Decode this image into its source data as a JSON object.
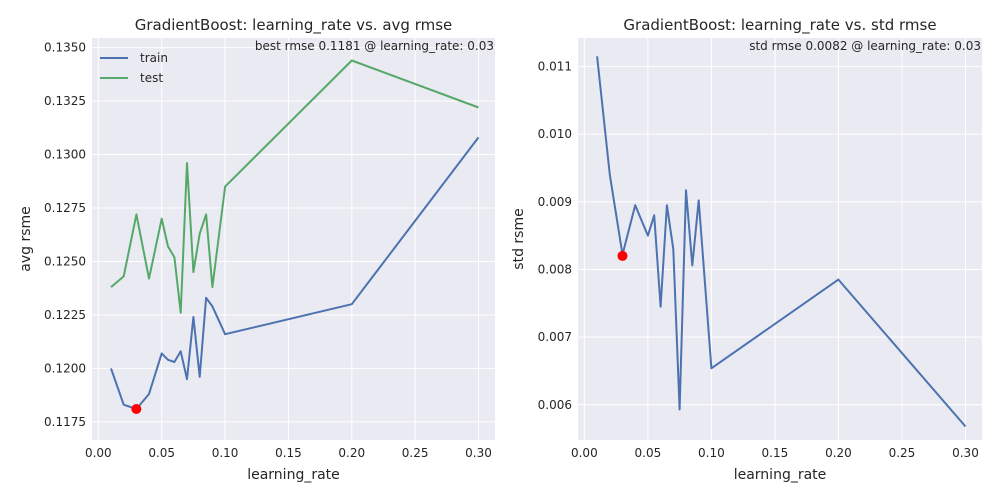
{
  "chart_data": [
    {
      "type": "line",
      "title": "GradientBoost: learning_rate vs. avg rmse",
      "xlabel": "learning_rate",
      "ylabel": "avg rsme",
      "annotation": "best rmse 0.1181 @ learning_rate: 0.03",
      "xlim": [
        -0.005,
        0.313
      ],
      "ylim": [
        0.11665,
        0.13545
      ],
      "xticks": [
        0.0,
        0.05,
        0.1,
        0.15,
        0.2,
        0.25,
        0.3
      ],
      "xtick_labels": [
        "0.00",
        "0.05",
        "0.10",
        "0.15",
        "0.20",
        "0.25",
        "0.30"
      ],
      "yticks": [
        0.1175,
        0.12,
        0.1225,
        0.125,
        0.1275,
        0.13,
        0.1325,
        0.135
      ],
      "ytick_labels": [
        "0.1175",
        "0.1200",
        "0.1225",
        "0.1250",
        "0.1275",
        "0.1300",
        "0.1325",
        "0.1350"
      ],
      "grid": true,
      "legend_position": "top-left",
      "x": [
        0.01,
        0.02,
        0.03,
        0.04,
        0.05,
        0.055,
        0.06,
        0.065,
        0.07,
        0.075,
        0.08,
        0.085,
        0.09,
        0.1,
        0.2,
        0.3
      ],
      "series": [
        {
          "name": "train",
          "color": "#4c72b0",
          "values": [
            0.12,
            0.1183,
            0.1181,
            0.1188,
            0.1207,
            0.1204,
            0.1203,
            0.1208,
            0.1195,
            0.1224,
            0.1196,
            0.1233,
            0.1229,
            0.1216,
            0.123,
            0.1308
          ]
        },
        {
          "name": "test",
          "color": "#55a868",
          "values": [
            0.1238,
            0.1243,
            0.1272,
            0.1242,
            0.127,
            0.1257,
            0.1252,
            0.1226,
            0.1296,
            0.1245,
            0.1263,
            0.1272,
            0.1238,
            0.1285,
            0.1344,
            0.1322
          ]
        }
      ],
      "marker": {
        "x": 0.03,
        "y": 0.1181,
        "color": "#ff0000"
      }
    },
    {
      "type": "line",
      "title": "GradientBoost: learning_rate vs. std rmse",
      "xlabel": "learning_rate",
      "ylabel": "std rsme",
      "annotation": "std rmse 0.0082 @ learning_rate: 0.03",
      "xlim": [
        -0.005,
        0.313
      ],
      "ylim": [
        0.00548,
        0.01142
      ],
      "xticks": [
        0.0,
        0.05,
        0.1,
        0.15,
        0.2,
        0.25,
        0.3
      ],
      "xtick_labels": [
        "0.00",
        "0.05",
        "0.10",
        "0.15",
        "0.20",
        "0.25",
        "0.30"
      ],
      "yticks": [
        0.006,
        0.007,
        0.008,
        0.009,
        0.01,
        0.011
      ],
      "ytick_labels": [
        "0.006",
        "0.007",
        "0.008",
        "0.009",
        "0.010",
        "0.011"
      ],
      "grid": true,
      "x": [
        0.01,
        0.02,
        0.03,
        0.04,
        0.05,
        0.055,
        0.06,
        0.065,
        0.07,
        0.075,
        0.08,
        0.085,
        0.09,
        0.1,
        0.2,
        0.3
      ],
      "series": [
        {
          "color": "#4c72b0",
          "values": [
            0.01115,
            0.0094,
            0.00822,
            0.00895,
            0.0085,
            0.0088,
            0.00745,
            0.00895,
            0.0083,
            0.00593,
            0.00917,
            0.00806,
            0.00902,
            0.00654,
            0.00785,
            0.00568
          ]
        }
      ],
      "marker": {
        "x": 0.03,
        "y": 0.0082,
        "color": "#ff0000"
      }
    }
  ]
}
